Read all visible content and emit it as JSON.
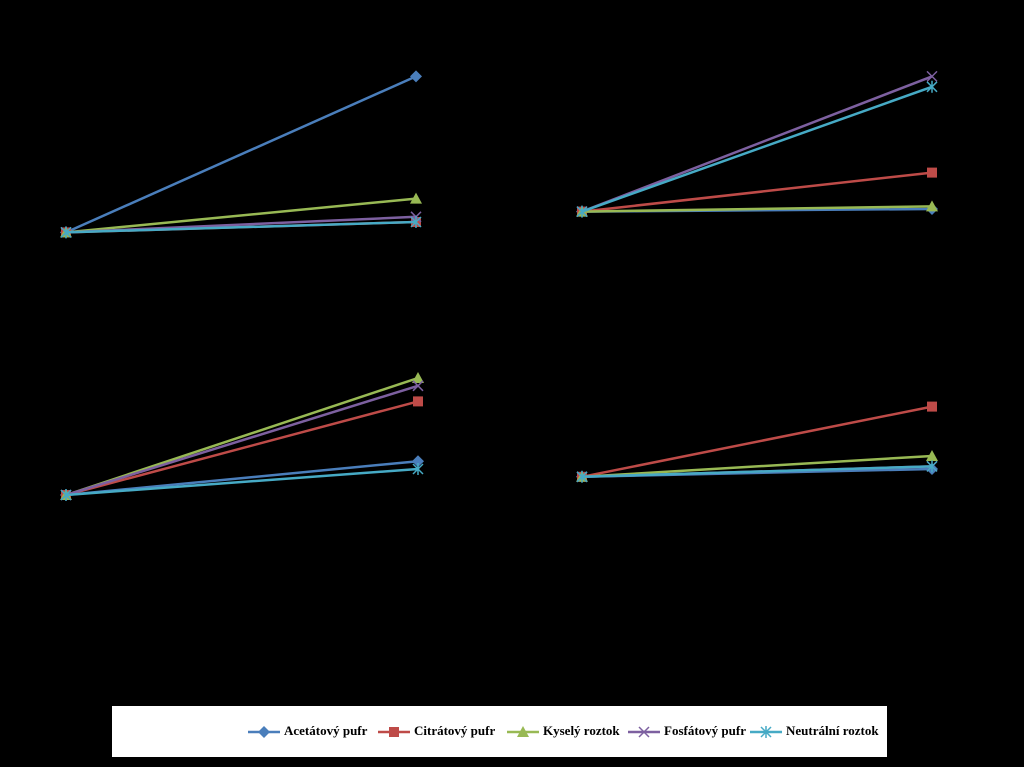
{
  "chart_data": [
    {
      "type": "line",
      "categories": [
        null,
        null
      ],
      "ylim": [
        0,
        100
      ],
      "series": [
        {
          "values": [
            26,
            86
          ]
        },
        {
          "values": [
            26,
            30
          ]
        },
        {
          "values": [
            26,
            39
          ]
        },
        {
          "values": [
            26,
            32
          ]
        },
        {
          "values": [
            26,
            30
          ]
        }
      ]
    },
    {
      "type": "line",
      "categories": [
        null,
        null
      ],
      "ylim": [
        0,
        100
      ],
      "series": [
        {
          "values": [
            34,
            35
          ]
        },
        {
          "values": [
            34,
            49
          ]
        },
        {
          "values": [
            34,
            36
          ]
        },
        {
          "values": [
            34,
            86
          ]
        },
        {
          "values": [
            34,
            82
          ]
        }
      ]
    },
    {
      "type": "line",
      "categories": [
        null,
        null
      ],
      "ylim": [
        0,
        100
      ],
      "series": [
        {
          "values": [
            25,
            38
          ]
        },
        {
          "values": [
            25,
            61
          ]
        },
        {
          "values": [
            25,
            70
          ]
        },
        {
          "values": [
            25,
            67
          ]
        },
        {
          "values": [
            25,
            35
          ]
        }
      ]
    },
    {
      "type": "line",
      "categories": [
        null,
        null
      ],
      "ylim": [
        0,
        100
      ],
      "series": [
        {
          "values": [
            32,
            35
          ]
        },
        {
          "values": [
            32,
            59
          ]
        },
        {
          "values": [
            32,
            40
          ]
        },
        {
          "values": [
            32,
            36
          ]
        },
        {
          "values": [
            32,
            36
          ]
        }
      ]
    }
  ],
  "legend": {
    "series": [
      {
        "name": "Acetátový pufr",
        "color": "#4a7ebb",
        "marker": "diamond"
      },
      {
        "name": "Citrátový pufr",
        "color": "#be4b48",
        "marker": "square"
      },
      {
        "name": "Kyselý roztok",
        "color": "#98b954",
        "marker": "triangle"
      },
      {
        "name": "Fosfátový pufr",
        "color": "#7d60a0",
        "marker": "x"
      },
      {
        "name": "Neutrální roztok",
        "color": "#46aac5",
        "marker": "asterisk"
      }
    ]
  }
}
